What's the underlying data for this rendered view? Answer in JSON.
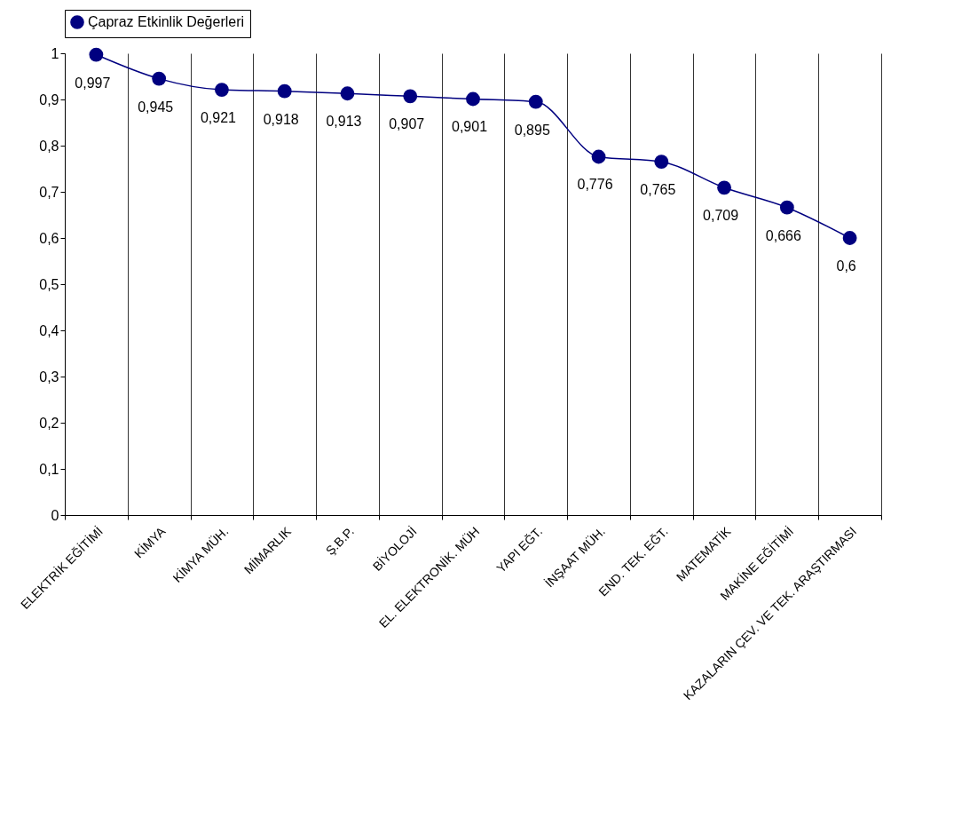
{
  "chart_data": {
    "type": "line",
    "categories": [
      "ELEKTRİK EĞİTİMİ",
      "KİMYA",
      "KİMYA MÜH.",
      "MİMARLIK",
      "Ş.B.P.",
      "BİYOLOJİ",
      "EL. ELEKTRONİK. MÜH",
      "YAPI EĞT.",
      "İNŞAAT MÜH.",
      "END. TEK. EĞT.",
      "MATEMATİK",
      "MAKİNE EĞİTİMİ",
      "KAZALARIN ÇEV. VE TEK. ARAŞTIRMASI"
    ],
    "series": [
      {
        "name": "Çapraz Etkinlik Değerleri",
        "color": "#000080",
        "values": [
          0.997,
          0.945,
          0.921,
          0.918,
          0.913,
          0.907,
          0.901,
          0.895,
          0.776,
          0.765,
          0.709,
          0.666,
          0.6
        ],
        "value_labels": [
          "0,997",
          "0,945",
          "0,921",
          "0,918",
          "0,913",
          "0,907",
          "0,901",
          "0,895",
          "0,776",
          "0,765",
          "0,709",
          "0,666",
          "0,6"
        ]
      }
    ],
    "ylim": [
      0,
      1
    ],
    "yticks": [
      0,
      {
        "value": 0.1,
        "label": "0,1"
      },
      {
        "value": 0.2,
        "label": "0,2"
      },
      {
        "value": 0.3,
        "label": "0,3"
      },
      {
        "value": 0.4,
        "label": "0,4"
      },
      {
        "value": 0.5,
        "label": "0,5"
      },
      {
        "value": 0.6,
        "label": "0,6"
      },
      {
        "value": 0.7,
        "label": "0,7"
      },
      {
        "value": 0.8,
        "label": "0,8"
      },
      {
        "value": 0.9,
        "label": "0,9"
      },
      1
    ],
    "grid": "x",
    "legend": "top",
    "marker": "circle",
    "line_style": "solid"
  }
}
